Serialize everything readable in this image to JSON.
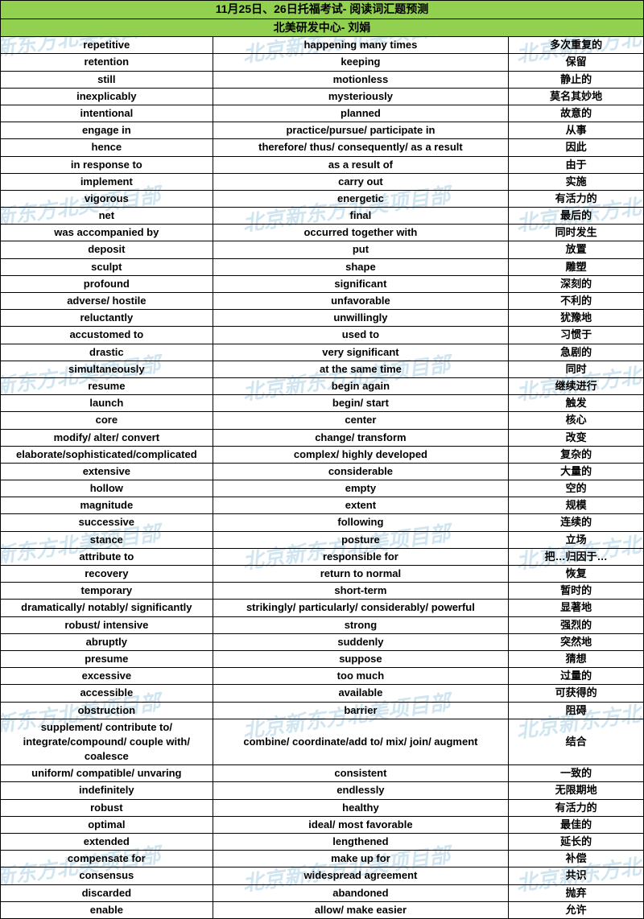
{
  "header": {
    "title": "11月25日、26日托福考试- 阅读词汇题预测",
    "subtitle": "北美研发中心- 刘娟"
  },
  "watermark": "北京新东方北美项目部",
  "colors": {
    "header_bg": "#92d050",
    "border": "#000000",
    "watermark": "rgba(120,180,210,0.35)"
  },
  "rows": [
    {
      "w": "repetitive",
      "s": "happening many times",
      "c": "多次重复的"
    },
    {
      "w": "retention",
      "s": "keeping",
      "c": "保留"
    },
    {
      "w": "still",
      "s": "motionless",
      "c": "静止的"
    },
    {
      "w": "inexplicably",
      "s": "mysteriously",
      "c": "莫名其妙地"
    },
    {
      "w": "intentional",
      "s": "planned",
      "c": "故意的"
    },
    {
      "w": "engage in",
      "s": "practice/pursue/ participate in",
      "c": "从事"
    },
    {
      "w": "hence",
      "s": "therefore/ thus/ consequently/ as a result",
      "c": "因此"
    },
    {
      "w": "in response to",
      "s": "as a result of",
      "c": "由于"
    },
    {
      "w": "implement",
      "s": "carry out",
      "c": "实施"
    },
    {
      "w": "vigorous",
      "s": "energetic",
      "c": "有活力的"
    },
    {
      "w": "net",
      "s": "final",
      "c": "最后的"
    },
    {
      "w": "was accompanied by",
      "s": "occurred together with",
      "c": "同时发生"
    },
    {
      "w": "deposit",
      "s": "put",
      "c": "放置"
    },
    {
      "w": "sculpt",
      "s": "shape",
      "c": "雕塑"
    },
    {
      "w": "profound",
      "s": "significant",
      "c": "深刻的"
    },
    {
      "w": "adverse/ hostile",
      "s": "unfavorable",
      "c": "不利的"
    },
    {
      "w": "reluctantly",
      "s": "unwillingly",
      "c": "犹豫地"
    },
    {
      "w": "accustomed to",
      "s": "used to",
      "c": "习惯于"
    },
    {
      "w": "drastic",
      "s": "very significant",
      "c": "急剧的"
    },
    {
      "w": "simultaneously",
      "s": "at the same time",
      "c": "同时"
    },
    {
      "w": "resume",
      "s": "begin again",
      "c": "继续进行"
    },
    {
      "w": "launch",
      "s": "begin/ start",
      "c": "触发"
    },
    {
      "w": "core",
      "s": "center",
      "c": "核心"
    },
    {
      "w": "modify/ alter/ convert",
      "s": "change/ transform",
      "c": "改变"
    },
    {
      "w": "elaborate/sophisticated/complicated",
      "s": "complex/ highly developed",
      "c": "复杂的"
    },
    {
      "w": "extensive",
      "s": "considerable",
      "c": "大量的"
    },
    {
      "w": "hollow",
      "s": "empty",
      "c": "空的"
    },
    {
      "w": "magnitude",
      "s": "extent",
      "c": "规模"
    },
    {
      "w": "successive",
      "s": "following",
      "c": "连续的"
    },
    {
      "w": "stance",
      "s": "posture",
      "c": "立场"
    },
    {
      "w": "attribute to",
      "s": "responsible for",
      "c": "把…归因于…"
    },
    {
      "w": "recovery",
      "s": "return to normal",
      "c": "恢复"
    },
    {
      "w": "temporary",
      "s": "short-term",
      "c": "暂时的"
    },
    {
      "w": "dramatically/ notably/ significantly",
      "s": "strikingly/ particularly/ considerably/ powerful",
      "c": "显著地"
    },
    {
      "w": "robust/ intensive",
      "s": "strong",
      "c": "强烈的"
    },
    {
      "w": "abruptly",
      "s": "suddenly",
      "c": "突然地"
    },
    {
      "w": "presume",
      "s": "suppose",
      "c": "猜想"
    },
    {
      "w": "excessive",
      "s": "too much",
      "c": "过量的"
    },
    {
      "w": "accessible",
      "s": "available",
      "c": "可获得的"
    },
    {
      "w": "obstruction",
      "s": "barrier",
      "c": "阻碍"
    },
    {
      "w": "supplement/ contribute to/ integrate/compound/ couple with/ coalesce",
      "s": "combine/ coordinate/add to/ mix/ join/ augment",
      "c": "结合",
      "tall": true
    },
    {
      "w": "uniform/ compatible/ unvaring",
      "s": "consistent",
      "c": "一致的"
    },
    {
      "w": "indefinitely",
      "s": "endlessly",
      "c": "无限期地"
    },
    {
      "w": "robust",
      "s": "healthy",
      "c": "有活力的"
    },
    {
      "w": "optimal",
      "s": "ideal/ most favorable",
      "c": "最佳的"
    },
    {
      "w": "extended",
      "s": "lengthened",
      "c": "延长的"
    },
    {
      "w": "compensate for",
      "s": "make up for",
      "c": "补偿"
    },
    {
      "w": "consensus",
      "s": "widespread agreement",
      "c": "共识"
    },
    {
      "w": "discarded",
      "s": "abandoned",
      "c": "抛弃"
    },
    {
      "w": "enable",
      "s": "allow/ make easier",
      "c": "允许"
    }
  ]
}
